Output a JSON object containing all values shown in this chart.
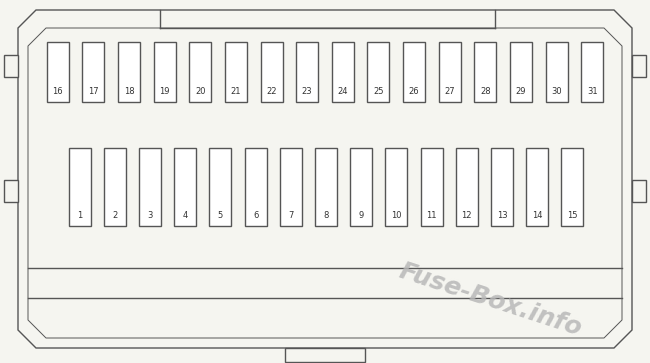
{
  "bg_color": "#f5f5f0",
  "line_color": "#555555",
  "fuse_fill": "#ffffff",
  "text_color": "#333333",
  "watermark_color": "#b8b8b8",
  "watermark_text": "Fuse-Box.info",
  "row1_labels": [
    "16",
    "17",
    "18",
    "19",
    "20",
    "21",
    "22",
    "23",
    "24",
    "25",
    "26",
    "27",
    "28",
    "29",
    "30",
    "31"
  ],
  "row2_labels": [
    "1",
    "2",
    "3",
    "4",
    "5",
    "6",
    "7",
    "8",
    "9",
    "10",
    "11",
    "12",
    "13",
    "14",
    "15"
  ],
  "fig_width": 6.5,
  "fig_height": 3.63,
  "dpi": 100
}
